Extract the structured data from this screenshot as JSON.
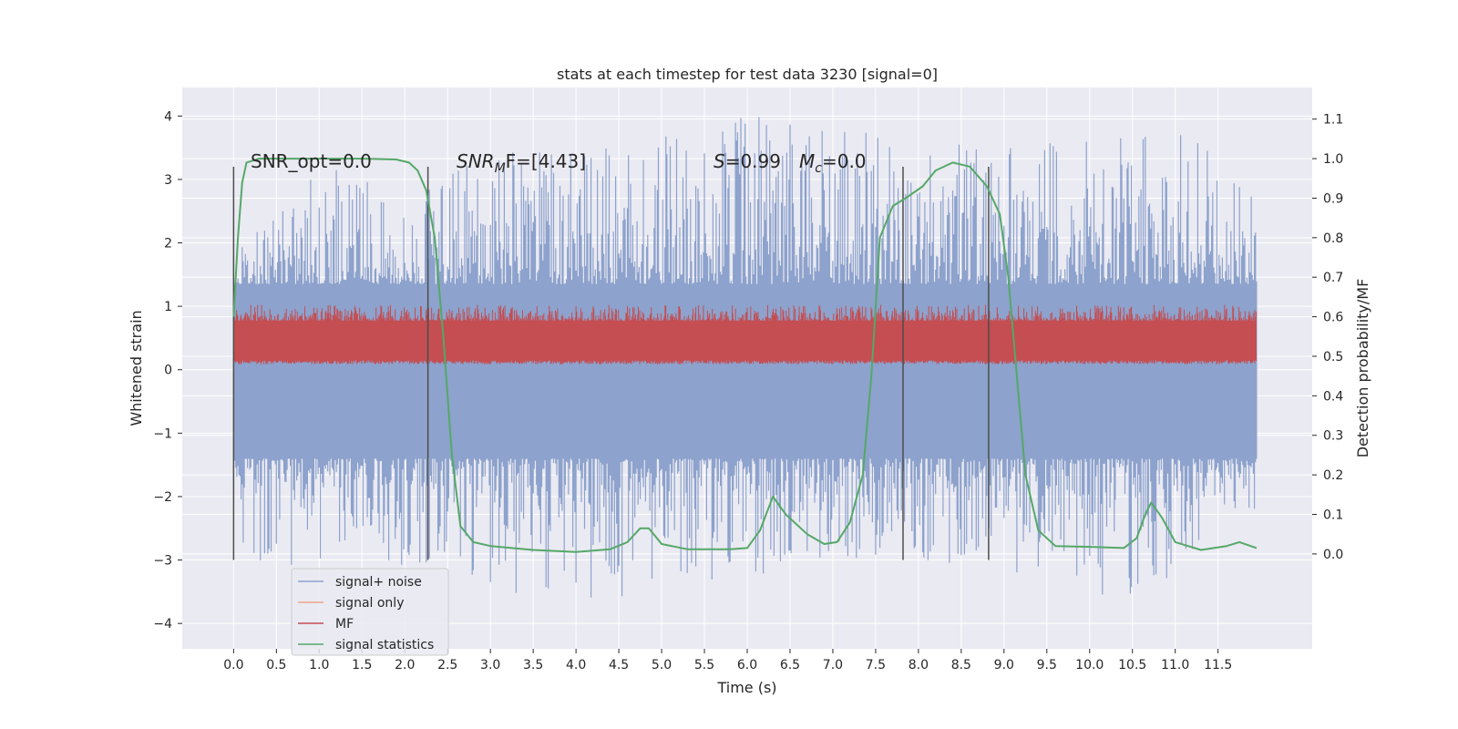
{
  "chart_data": {
    "type": "line",
    "title": "stats at each timestep for test data 3230 [signal=0]",
    "xlabel": "Time (s)",
    "ylabel": "Whitened strain",
    "ylabel_right": "Detection probability/MF",
    "xlim": [
      -0.6,
      12.6
    ],
    "ylim": [
      -4.4,
      4.45
    ],
    "ylim_right": [
      -0.24,
      1.18
    ],
    "x_ticks": [
      "0.0",
      "0.5",
      "1.0",
      "1.5",
      "2.0",
      "2.5",
      "3.0",
      "3.5",
      "4.0",
      "4.5",
      "5.0",
      "5.5",
      "6.0",
      "6.5",
      "7.0",
      "7.5",
      "8.0",
      "8.5",
      "9.0",
      "9.5",
      "10.0",
      "10.5",
      "11.0",
      "11.5"
    ],
    "y_ticks": [
      "4",
      "3",
      "2",
      "1",
      "0",
      "−1",
      "−2",
      "−3",
      "−4"
    ],
    "y_right_ticks": [
      "1.1",
      "1.0",
      "0.9",
      "0.8",
      "0.7",
      "0.6",
      "0.5",
      "0.4",
      "0.3",
      "0.2",
      "0.1",
      "0.0"
    ],
    "grid": true,
    "legend_position": "lower-left",
    "annotations": {
      "snr_opt": "SNR_opt=0.0",
      "snr_mf_prefix": "SNR",
      "snr_mf_sub": "M",
      "snr_mf_suffix": "F=[4.43]",
      "s_var": "S",
      "s_val": "=0.99",
      "mc_var": "M",
      "mc_sub": "c",
      "mc_val": "=0.0"
    },
    "vertical_markers_x": [
      0.0,
      2.27,
      7.82,
      8.82
    ],
    "marker_range_y": [
      -3.0,
      3.2
    ],
    "series": [
      {
        "name": "signal+ noise",
        "color": "#8da2cc",
        "envelope_upper": [
          {
            "x": 0.0,
            "y": 1.8
          },
          {
            "x": 1.0,
            "y": 3.3
          },
          {
            "x": 2.0,
            "y": 2.8
          },
          {
            "x": 3.0,
            "y": 3.4
          },
          {
            "x": 4.0,
            "y": 3.5
          },
          {
            "x": 5.0,
            "y": 3.7
          },
          {
            "x": 5.8,
            "y": 4.1
          },
          {
            "x": 7.0,
            "y": 3.9
          },
          {
            "x": 8.0,
            "y": 3.5
          },
          {
            "x": 9.0,
            "y": 3.6
          },
          {
            "x": 10.0,
            "y": 3.6
          },
          {
            "x": 11.0,
            "y": 3.9
          },
          {
            "x": 11.9,
            "y": 2.9
          }
        ],
        "envelope_lower": [
          {
            "x": 0.0,
            "y": -2.5
          },
          {
            "x": 0.25,
            "y": -3.4
          },
          {
            "x": 1.0,
            "y": -3.0
          },
          {
            "x": 2.0,
            "y": -3.1
          },
          {
            "x": 3.5,
            "y": -3.6
          },
          {
            "x": 3.7,
            "y": -3.9
          },
          {
            "x": 5.0,
            "y": -3.4
          },
          {
            "x": 6.2,
            "y": -3.3
          },
          {
            "x": 7.0,
            "y": -3.0
          },
          {
            "x": 8.0,
            "y": -3.1
          },
          {
            "x": 9.0,
            "y": -3.2
          },
          {
            "x": 10.5,
            "y": -3.7
          },
          {
            "x": 11.0,
            "y": -3.2
          },
          {
            "x": 11.9,
            "y": -2.2
          }
        ],
        "band_upper": 1.35,
        "band_lower": -1.4
      },
      {
        "name": "signal only",
        "color": "#e9a88a"
      },
      {
        "name": "MF",
        "color": "#c44e52",
        "axis": "right",
        "band_min": 0.49,
        "band_max": 0.59,
        "peak_max": 0.63
      },
      {
        "name": "signal statistics",
        "color": "#55a868",
        "axis": "right",
        "points": [
          {
            "x": 0.0,
            "y": 0.6
          },
          {
            "x": 0.05,
            "y": 0.8
          },
          {
            "x": 0.1,
            "y": 0.94
          },
          {
            "x": 0.15,
            "y": 0.99
          },
          {
            "x": 0.3,
            "y": 1.0
          },
          {
            "x": 1.0,
            "y": 1.0
          },
          {
            "x": 1.5,
            "y": 1.0
          },
          {
            "x": 1.9,
            "y": 0.998
          },
          {
            "x": 2.05,
            "y": 0.99
          },
          {
            "x": 2.15,
            "y": 0.97
          },
          {
            "x": 2.25,
            "y": 0.92
          },
          {
            "x": 2.35,
            "y": 0.8
          },
          {
            "x": 2.45,
            "y": 0.55
          },
          {
            "x": 2.55,
            "y": 0.25
          },
          {
            "x": 2.65,
            "y": 0.07
          },
          {
            "x": 2.8,
            "y": 0.03
          },
          {
            "x": 3.0,
            "y": 0.02
          },
          {
            "x": 3.5,
            "y": 0.01
          },
          {
            "x": 4.0,
            "y": 0.005
          },
          {
            "x": 4.4,
            "y": 0.012
          },
          {
            "x": 4.6,
            "y": 0.03
          },
          {
            "x": 4.75,
            "y": 0.065
          },
          {
            "x": 4.85,
            "y": 0.065
          },
          {
            "x": 5.0,
            "y": 0.025
          },
          {
            "x": 5.3,
            "y": 0.012
          },
          {
            "x": 5.8,
            "y": 0.012
          },
          {
            "x": 6.0,
            "y": 0.015
          },
          {
            "x": 6.15,
            "y": 0.06
          },
          {
            "x": 6.3,
            "y": 0.145
          },
          {
            "x": 6.45,
            "y": 0.1
          },
          {
            "x": 6.7,
            "y": 0.05
          },
          {
            "x": 6.9,
            "y": 0.025
          },
          {
            "x": 7.05,
            "y": 0.03
          },
          {
            "x": 7.2,
            "y": 0.08
          },
          {
            "x": 7.35,
            "y": 0.2
          },
          {
            "x": 7.45,
            "y": 0.45
          },
          {
            "x": 7.55,
            "y": 0.8
          },
          {
            "x": 7.7,
            "y": 0.88
          },
          {
            "x": 7.85,
            "y": 0.9
          },
          {
            "x": 8.05,
            "y": 0.93
          },
          {
            "x": 8.2,
            "y": 0.97
          },
          {
            "x": 8.4,
            "y": 0.99
          },
          {
            "x": 8.6,
            "y": 0.98
          },
          {
            "x": 8.8,
            "y": 0.93
          },
          {
            "x": 8.95,
            "y": 0.86
          },
          {
            "x": 9.05,
            "y": 0.7
          },
          {
            "x": 9.15,
            "y": 0.45
          },
          {
            "x": 9.25,
            "y": 0.2
          },
          {
            "x": 9.4,
            "y": 0.06
          },
          {
            "x": 9.6,
            "y": 0.02
          },
          {
            "x": 10.0,
            "y": 0.018
          },
          {
            "x": 10.4,
            "y": 0.015
          },
          {
            "x": 10.55,
            "y": 0.04
          },
          {
            "x": 10.65,
            "y": 0.1
          },
          {
            "x": 10.72,
            "y": 0.13
          },
          {
            "x": 10.85,
            "y": 0.09
          },
          {
            "x": 11.0,
            "y": 0.03
          },
          {
            "x": 11.3,
            "y": 0.01
          },
          {
            "x": 11.6,
            "y": 0.02
          },
          {
            "x": 11.75,
            "y": 0.03
          },
          {
            "x": 11.95,
            "y": 0.015
          }
        ]
      }
    ]
  }
}
